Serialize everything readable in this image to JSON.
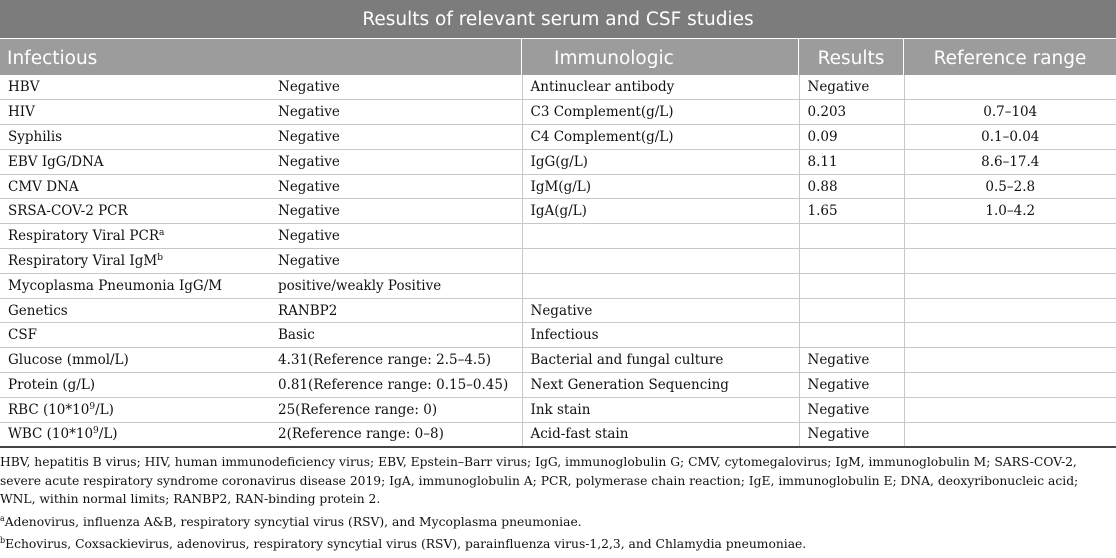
{
  "title": "Results of relevant serum and CSF studies",
  "headers": {
    "infectious": "Infectious",
    "immunologic": "Immunologic",
    "results": "Results",
    "reference_range": "Reference range"
  },
  "rows": [
    {
      "c1": "HBV",
      "c1_sup": "",
      "c2": "Negative",
      "c3": "Antinuclear antibody",
      "c4": "Negative",
      "c5": ""
    },
    {
      "c1": "HIV",
      "c1_sup": "",
      "c2": "Negative",
      "c3": "C3 Complement(g/L)",
      "c4": "0.203",
      "c5": "0.7–104"
    },
    {
      "c1": "Syphilis",
      "c1_sup": "",
      "c2": "Negative",
      "c3": "C4 Complement(g/L)",
      "c4": "0.09",
      "c5": "0.1–0.04"
    },
    {
      "c1": "EBV IgG/DNA",
      "c1_sup": "",
      "c2": "Negative",
      "c3": "IgG(g/L)",
      "c4": "8.11",
      "c5": "8.6–17.4"
    },
    {
      "c1": "CMV DNA",
      "c1_sup": "",
      "c2": "Negative",
      "c3": "IgM(g/L)",
      "c4": "0.88",
      "c5": "0.5–2.8"
    },
    {
      "c1": "SRSA-COV-2 PCR",
      "c1_sup": "",
      "c2": "Negative",
      "c3": "IgA(g/L)",
      "c4": "1.65",
      "c5": "1.0–4.2"
    },
    {
      "c1": "Respiratory Viral PCR",
      "c1_sup": "a",
      "c2": "Negative",
      "c3": "",
      "c4": "",
      "c5": ""
    },
    {
      "c1": "Respiratory Viral IgM",
      "c1_sup": "b",
      "c2": "Negative",
      "c3": "",
      "c4": "",
      "c5": ""
    },
    {
      "c1": "Mycoplasma Pneumonia IgG/M",
      "c1_sup": "",
      "c2": "positive/weakly Positive",
      "c3": "",
      "c4": "",
      "c5": ""
    },
    {
      "c1": "Genetics",
      "c1_sup": "",
      "c2": "RANBP2",
      "c3": "Negative",
      "c4": "",
      "c5": ""
    },
    {
      "c1": "CSF",
      "c1_sup": "",
      "c2": "Basic",
      "c3": "Infectious",
      "c4": "",
      "c5": ""
    },
    {
      "c1": "Glucose (mmol/L)",
      "c1_sup": "",
      "c2": "4.31(Reference range: 2.5–4.5)",
      "c3": "Bacterial and fungal culture",
      "c4": "Negative",
      "c5": ""
    },
    {
      "c1": "Protein (g/L)",
      "c1_sup": "",
      "c2": "0.81(Reference range: 0.15–0.45)",
      "c3": "Next Generation Sequencing",
      "c4": "Negative",
      "c5": ""
    },
    {
      "c1": "RBC (10*10",
      "c1_exp": "9",
      "c1_tail": "/L)",
      "c2": "25(Reference range: 0)",
      "c3": "Ink stain",
      "c4": "Negative",
      "c5": ""
    },
    {
      "c1": "WBC (10*10",
      "c1_exp": "9",
      "c1_tail": "/L)",
      "c2": "2(Reference range: 0–8)",
      "c3": "Acid-fast stain",
      "c4": "Negative",
      "c5": ""
    }
  ],
  "footnotes": {
    "abbreviations": "HBV, hepatitis B virus; HIV, human immunodeficiency virus; EBV, Epstein–Barr virus; IgG, immunoglobulin G; CMV, cytomegalovirus; IgM, immunoglobulin M; SARS-COV-2, severe acute respiratory syndrome coronavirus disease 2019; IgA, immunoglobulin A; PCR, polymerase chain reaction; IgE, immunoglobulin E; DNA, deoxyribonucleic acid; WNL, within normal limits; RANBP2, RAN-binding protein 2.",
    "a_marker": "a",
    "a_text": "Adenovirus, influenza A&B, respiratory syncytial virus (RSV), and Mycoplasma pneumoniae.",
    "b_marker": "b",
    "b_text": "Echovirus, Coxsackievirus, adenovirus, respiratory syncytial virus (RSV), parainfluenza virus-1,2,3, and Chlamydia pneumoniae."
  },
  "colors": {
    "title_bg": "#7c7c7c",
    "header_bg": "#9c9c9c",
    "grid_line": "#c8c8c8"
  }
}
